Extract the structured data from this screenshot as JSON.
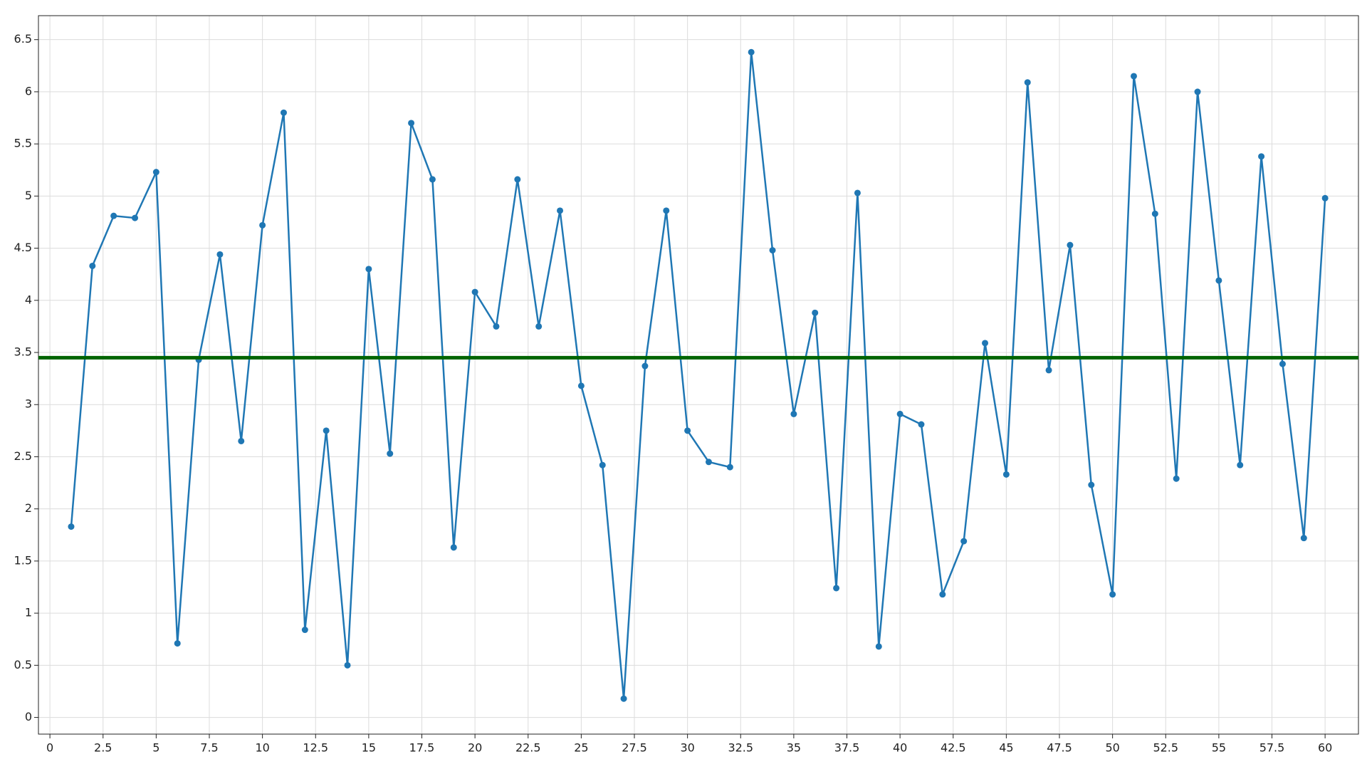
{
  "chart_data": {
    "type": "line",
    "x": [
      1,
      2,
      3,
      4,
      5,
      6,
      7,
      8,
      9,
      10,
      11,
      12,
      13,
      14,
      15,
      16,
      17,
      18,
      19,
      20,
      21,
      22,
      23,
      24,
      25,
      26,
      27,
      28,
      29,
      30,
      31,
      32,
      33,
      34,
      35,
      36,
      37,
      38,
      39,
      40,
      41,
      42,
      43,
      44,
      45,
      46,
      47,
      48,
      49,
      50,
      51,
      52,
      53,
      54,
      55,
      56,
      57,
      58,
      59,
      60
    ],
    "series": [
      {
        "color": "#1f77b4",
        "values": [
          1.83,
          4.33,
          4.81,
          4.79,
          5.23,
          0.71,
          3.43,
          4.44,
          2.65,
          4.72,
          5.8,
          0.84,
          2.75,
          0.5,
          4.3,
          2.53,
          5.7,
          5.16,
          1.63,
          4.08,
          3.75,
          5.16,
          3.75,
          4.86,
          3.18,
          2.42,
          0.18,
          3.37,
          4.86,
          2.75,
          2.45,
          2.4,
          6.38,
          4.48,
          2.91,
          3.88,
          1.24,
          5.03,
          0.68,
          2.91,
          2.81,
          1.18,
          1.69,
          3.59,
          2.33,
          6.09,
          3.33,
          4.53,
          2.23,
          1.18,
          6.15,
          4.83,
          2.29,
          6.0,
          4.19,
          2.42,
          5.38,
          3.39,
          1.72,
          4.98
        ]
      }
    ],
    "hline": {
      "value": 3.45,
      "color": "#006400"
    },
    "xlim": [
      -0.54,
      61.57
    ],
    "xticks": [
      0,
      2.5,
      5,
      7.5,
      10,
      12.5,
      15,
      17.5,
      20,
      22.5,
      25,
      27.5,
      30,
      32.5,
      35,
      37.5,
      40,
      42.5,
      45,
      47.5,
      50,
      52.5,
      55,
      57.5,
      60
    ],
    "ylim": [
      -0.16,
      6.73
    ],
    "yticks": [
      0,
      0.5,
      1,
      1.5,
      2,
      2.5,
      3,
      3.5,
      4,
      4.5,
      5,
      5.5,
      6,
      6.5
    ],
    "grid": true
  }
}
